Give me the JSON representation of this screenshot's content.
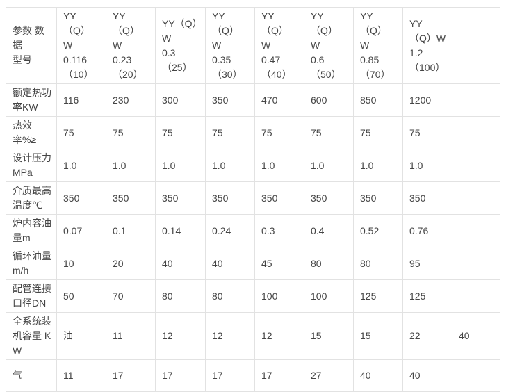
{
  "table": {
    "corner_label": "参数 数据\n型号",
    "column_headers": [
      "YY（Q）\nW\n0.116\n（10）",
      "YY（Q）\nW\n0.23\n（20）",
      "YY（Q）\nW\n0.3\n（25）",
      "YY（Q）\nW\n0.35\n（30）",
      "YY（Q）\nW\n0.47\n（40）",
      "YY（Q）\nW\n0.6\n（50）",
      "YY（Q）\nW\n0.85\n（70）",
      "YY\n（Q）W\n1.2\n（100）",
      ""
    ],
    "rows": [
      {
        "label": "额定热功\n率KW",
        "values": [
          "116",
          "230",
          "300",
          "350",
          "470",
          "600",
          "850",
          "1200",
          ""
        ]
      },
      {
        "label": "热效率%≥",
        "values": [
          "75",
          "75",
          "75",
          "75",
          "75",
          "75",
          "75",
          "75",
          ""
        ]
      },
      {
        "label": "设计压力\nMPa",
        "values": [
          "1.0",
          "1.0",
          "1.0",
          "1.0",
          "1.0",
          "1.0",
          "1.0",
          "1.0",
          ""
        ]
      },
      {
        "label": "介质最高\n温度℃",
        "values": [
          "350",
          "350",
          "350",
          "350",
          "350",
          "350",
          "350",
          "350",
          ""
        ]
      },
      {
        "label": "炉内容油\n量m",
        "values": [
          "0.07",
          "0.1",
          "0.14",
          "0.24",
          "0.3",
          "0.4",
          "0.52",
          "0.76",
          ""
        ]
      },
      {
        "label": "循环油量\nm/h",
        "values": [
          "10",
          "20",
          "40",
          "40",
          "45",
          "80",
          "80",
          "95",
          ""
        ]
      },
      {
        "label": "配管连接\n口径DN",
        "values": [
          "50",
          "70",
          "80",
          "80",
          "100",
          "100",
          "125",
          "125",
          ""
        ]
      },
      {
        "label": "全系统装\n机容量 K\nW",
        "values": [
          "油",
          "11",
          "12",
          "12",
          "12",
          "15",
          "15",
          "22",
          "40"
        ]
      },
      {
        "label": "气",
        "values": [
          "11",
          "17",
          "17",
          "17",
          "17",
          "27",
          "40",
          "40",
          ""
        ]
      }
    ],
    "colors": {
      "border": "#e2e2e2",
      "text": "#454545",
      "background": "#ffffff"
    }
  }
}
